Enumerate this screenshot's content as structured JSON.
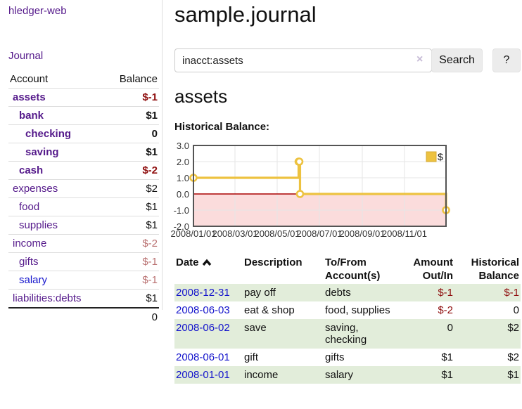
{
  "colors": {
    "purple_link": "#551a8b",
    "blue_link": "#1414cc",
    "negative": "#8f0e0e",
    "muted_negative": "#b97070",
    "row_highlight": "#e2edda",
    "chart_line": "#edc240"
  },
  "sidebar": {
    "brand": "hledger-web",
    "journal_link": "Journal",
    "accounts_table": {
      "header_account": "Account",
      "header_balance": "Balance",
      "rows": [
        {
          "account": "assets",
          "indent": 1,
          "bold": true,
          "link_color": "purple",
          "balance": "$-1",
          "balance_style": "negative"
        },
        {
          "account": "bank",
          "indent": 2,
          "bold": true,
          "link_color": "purple",
          "balance": "$1",
          "balance_style": "normal"
        },
        {
          "account": "checking",
          "indent": 3,
          "bold": true,
          "link_color": "purple",
          "balance": "0",
          "balance_style": "normal"
        },
        {
          "account": "saving",
          "indent": 3,
          "bold": true,
          "link_color": "purple",
          "balance": "$1",
          "balance_style": "normal"
        },
        {
          "account": "cash",
          "indent": 2,
          "bold": true,
          "link_color": "purple",
          "balance": "$-2",
          "balance_style": "negative"
        },
        {
          "account": "expenses",
          "indent": 1,
          "bold": false,
          "link_color": "purple",
          "balance": "$2",
          "balance_style": "normal"
        },
        {
          "account": "food",
          "indent": 2,
          "bold": false,
          "link_color": "purple",
          "balance": "$1",
          "balance_style": "normal"
        },
        {
          "account": "supplies",
          "indent": 2,
          "bold": false,
          "link_color": "purple",
          "balance": "$1",
          "balance_style": "normal"
        },
        {
          "account": "income",
          "indent": 1,
          "bold": false,
          "link_color": "purple",
          "balance": "$-2",
          "balance_style": "muted"
        },
        {
          "account": "gifts",
          "indent": 2,
          "bold": false,
          "link_color": "purple",
          "balance": "$-1",
          "balance_style": "muted"
        },
        {
          "account": "salary",
          "indent": 2,
          "bold": false,
          "link_color": "blue",
          "balance": "$-1",
          "balance_style": "muted"
        },
        {
          "account": "liabilities:debts",
          "indent": 1,
          "bold": false,
          "link_color": "purple",
          "balance": "$1",
          "balance_style": "normal"
        }
      ],
      "total": "0"
    }
  },
  "main": {
    "title": "sample.journal",
    "search": {
      "value": "inacct:assets",
      "clear_icon": "×",
      "search_button": "Search",
      "help_button": "?"
    },
    "account_heading": "assets",
    "section_label": "Historical Balance:"
  },
  "chart_data": {
    "type": "line",
    "step": true,
    "title": "Historical Balance",
    "legend": "$",
    "legend_position": "top-right",
    "series": [
      {
        "name": "$",
        "color": "#edc240",
        "points": [
          [
            "2008-01-01",
            1
          ],
          [
            "2008-06-01",
            2
          ],
          [
            "2008-06-02",
            2
          ],
          [
            "2008-06-03",
            0
          ],
          [
            "2008-12-31",
            -1
          ]
        ]
      }
    ],
    "x_range": [
      "2008-01-01",
      "2008-12-31"
    ],
    "x_ticks": [
      "2008/01/01",
      "2008/03/01",
      "2008/05/01",
      "2008/07/01",
      "2008/09/01",
      "2008/11/01"
    ],
    "y_ticks": [
      "3.0",
      "2.0",
      "1.0",
      "0.0",
      "-1.0",
      "-2.0"
    ],
    "ylim": [
      -2,
      3
    ],
    "grid": true,
    "negative_fill": "#fbdcdc",
    "zero_line": "#aa0000"
  },
  "transactions": {
    "sort": "ascending",
    "headers": {
      "date": "Date",
      "description": "Description",
      "tofrom": [
        "To/From",
        "Account(s)"
      ],
      "amount": [
        "Amount",
        "Out/In"
      ],
      "balance": [
        "Historical",
        "Balance"
      ]
    },
    "rows": [
      {
        "date": "2008-12-31",
        "description": "pay off",
        "accounts": "debts",
        "amount": "$-1",
        "amount_negative": true,
        "balance": "$-1",
        "balance_negative": true
      },
      {
        "date": "2008-06-03",
        "description": "eat & shop",
        "accounts": "food, supplies",
        "amount": "$-2",
        "amount_negative": true,
        "balance": "0",
        "balance_negative": false
      },
      {
        "date": "2008-06-02",
        "description": "save",
        "accounts": "saving, checking",
        "amount": "0",
        "amount_negative": false,
        "balance": "$2",
        "balance_negative": false
      },
      {
        "date": "2008-06-01",
        "description": "gift",
        "accounts": "gifts",
        "amount": "$1",
        "amount_negative": false,
        "balance": "$2",
        "balance_negative": false
      },
      {
        "date": "2008-01-01",
        "description": "income",
        "accounts": "salary",
        "amount": "$1",
        "amount_negative": false,
        "balance": "$1",
        "balance_negative": false
      }
    ]
  }
}
